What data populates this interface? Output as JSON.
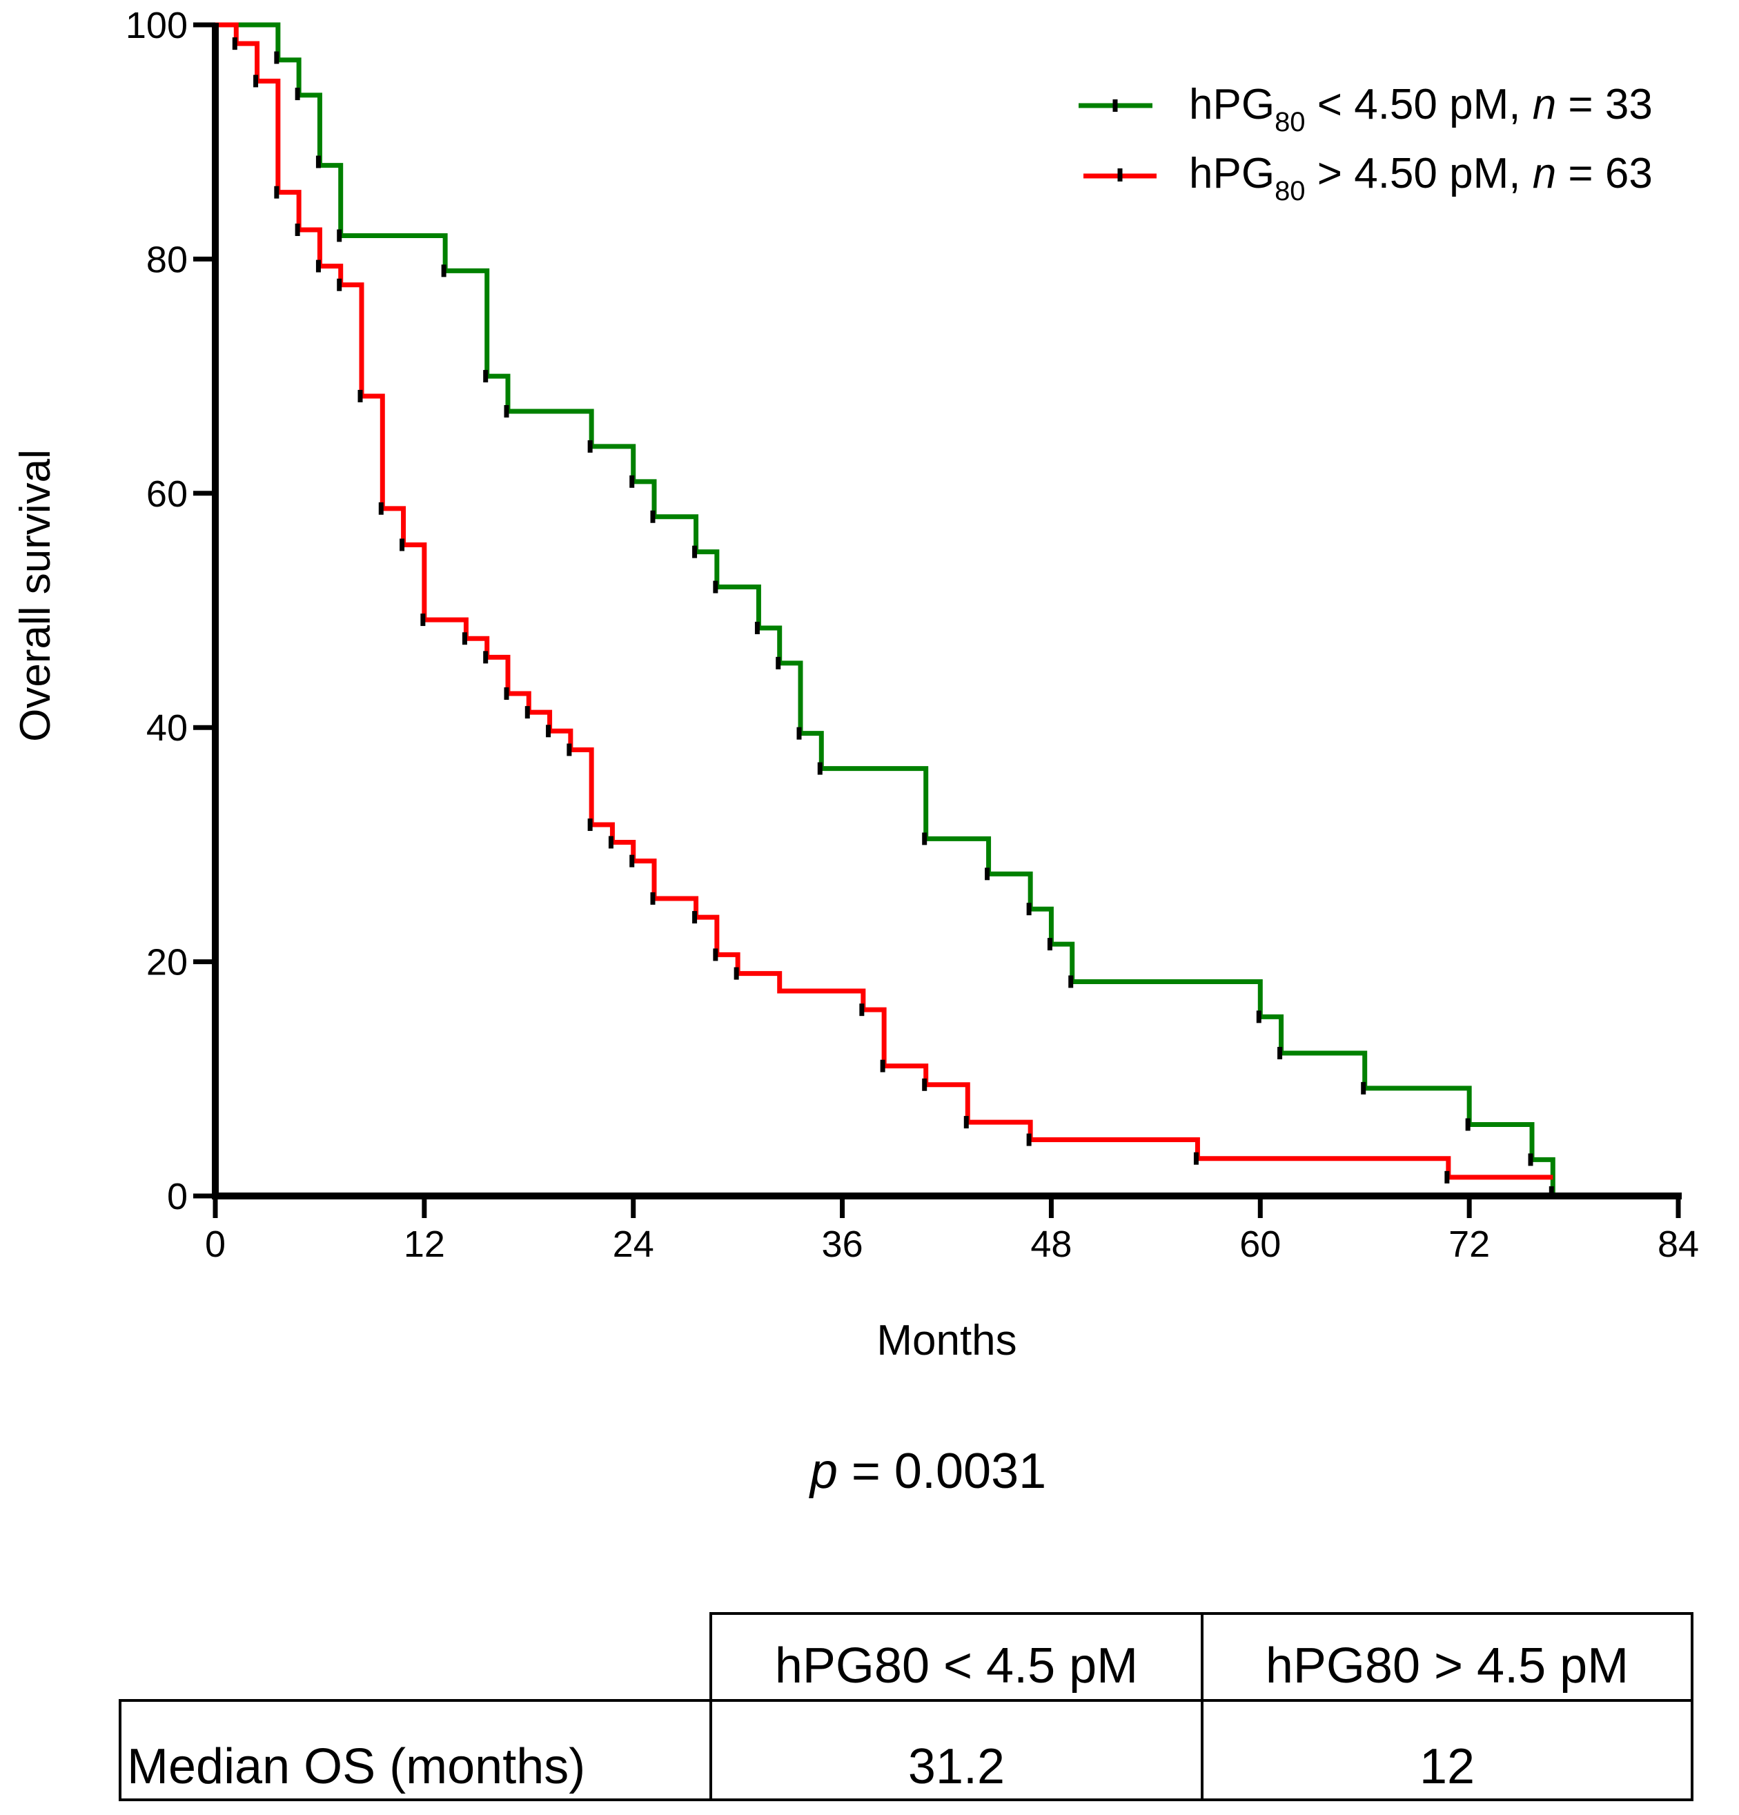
{
  "chart_data": {
    "type": "line",
    "subtype": "kaplan-meier step",
    "xlabel": "Months",
    "ylabel": "Overall survival",
    "xlim": [
      0,
      84
    ],
    "ylim": [
      0,
      100
    ],
    "xticks": [
      0,
      12,
      24,
      36,
      48,
      60,
      72,
      84
    ],
    "yticks": [
      0,
      20,
      40,
      60,
      80,
      100
    ],
    "grid": false,
    "legend_position": "top-right",
    "series": [
      {
        "name": "hPG80 < 4.50 pM, n = 33",
        "legend": {
          "prefix": "hPG",
          "subscript": "80",
          "condition": " < 4.50 pM, ",
          "n_label": "n",
          "n_text": " = 33"
        },
        "color": "#008000",
        "steps": [
          [
            0,
            100
          ],
          [
            3.6,
            97
          ],
          [
            4.8,
            94
          ],
          [
            6,
            88
          ],
          [
            7.2,
            82
          ],
          [
            13.2,
            79
          ],
          [
            15.6,
            70
          ],
          [
            16.8,
            67
          ],
          [
            21.6,
            64
          ],
          [
            24,
            61
          ],
          [
            25.2,
            58
          ],
          [
            27.6,
            55
          ],
          [
            28.8,
            52
          ],
          [
            31.2,
            48.5
          ],
          [
            32.4,
            45.5
          ],
          [
            33.6,
            39.5
          ],
          [
            34.8,
            36.5
          ],
          [
            40.8,
            30.5
          ],
          [
            44.4,
            27.5
          ],
          [
            46.8,
            24.5
          ],
          [
            48,
            21.5
          ],
          [
            49.2,
            18.3
          ],
          [
            60,
            15.3
          ],
          [
            61.2,
            12.2
          ],
          [
            66,
            9.2
          ],
          [
            72,
            6.1
          ],
          [
            75.6,
            3.1
          ],
          [
            76.8,
            0
          ]
        ],
        "censored": [
          [
            3.6,
            97.2
          ],
          [
            4.8,
            94.1
          ],
          [
            6,
            88.3
          ],
          [
            7.2,
            82
          ],
          [
            13.2,
            79
          ],
          [
            15.6,
            70
          ],
          [
            16.8,
            67
          ],
          [
            21.6,
            64
          ],
          [
            24,
            61
          ],
          [
            25.2,
            58
          ],
          [
            27.6,
            55
          ],
          [
            28.8,
            52
          ],
          [
            31.2,
            48.5
          ],
          [
            32.4,
            45.5
          ],
          [
            33.6,
            39.5
          ],
          [
            34.8,
            36.5
          ],
          [
            40.8,
            30.5
          ],
          [
            44.4,
            27.5
          ],
          [
            46.8,
            24.5
          ],
          [
            48,
            21.5
          ],
          [
            49.2,
            18.3
          ],
          [
            60,
            15.3
          ],
          [
            61.2,
            12.2
          ],
          [
            66,
            9.2
          ],
          [
            72,
            6.1
          ],
          [
            75.6,
            3.1
          ],
          [
            76.8,
            0.3
          ]
        ]
      },
      {
        "name": "hPG80 > 4.50 pM, n = 63",
        "legend": {
          "prefix": "hPG",
          "subscript": "80",
          "condition": " > 4.50 pM, ",
          "n_label": "n",
          "n_text": " = 63"
        },
        "color": "#ff0000",
        "steps": [
          [
            0,
            100
          ],
          [
            1.2,
            98.4
          ],
          [
            2.4,
            95.2
          ],
          [
            3.6,
            85.7
          ],
          [
            4.8,
            82.5
          ],
          [
            6,
            79.4
          ],
          [
            7.2,
            77.8
          ],
          [
            8.4,
            68.3
          ],
          [
            9.6,
            58.7
          ],
          [
            10.8,
            55.6
          ],
          [
            12,
            49.2
          ],
          [
            14.4,
            47.6
          ],
          [
            15.6,
            46
          ],
          [
            16.8,
            42.9
          ],
          [
            18,
            41.3
          ],
          [
            19.2,
            39.7
          ],
          [
            20.4,
            38.1
          ],
          [
            21.6,
            31.7
          ],
          [
            22.8,
            30.2
          ],
          [
            24,
            28.6
          ],
          [
            25.2,
            25.4
          ],
          [
            27.6,
            23.8
          ],
          [
            28.8,
            20.6
          ],
          [
            30,
            19
          ],
          [
            32.4,
            17.5
          ],
          [
            37.2,
            15.9
          ],
          [
            38.4,
            11.1
          ],
          [
            40.8,
            9.5
          ],
          [
            43.2,
            6.3
          ],
          [
            46.8,
            4.8
          ],
          [
            56.4,
            3.2
          ],
          [
            70.8,
            1.6
          ],
          [
            76.8,
            1.6
          ]
        ],
        "censored": [
          [
            1.2,
            98.4
          ],
          [
            2.4,
            95.2
          ],
          [
            3.6,
            85.7
          ],
          [
            4.8,
            82.5
          ],
          [
            6,
            79.4
          ],
          [
            7.2,
            77.8
          ],
          [
            8.4,
            68.3
          ],
          [
            9.6,
            58.7
          ],
          [
            10.8,
            55.6
          ],
          [
            12,
            49.2
          ],
          [
            14.4,
            47.6
          ],
          [
            15.6,
            46
          ],
          [
            16.8,
            42.9
          ],
          [
            18,
            41.3
          ],
          [
            19.2,
            39.7
          ],
          [
            20.4,
            38.1
          ],
          [
            21.6,
            31.7
          ],
          [
            22.8,
            30.2
          ],
          [
            24,
            28.6
          ],
          [
            25.2,
            25.4
          ],
          [
            27.6,
            23.8
          ],
          [
            28.8,
            20.6
          ],
          [
            30,
            19
          ],
          [
            37.2,
            15.9
          ],
          [
            38.4,
            11.1
          ],
          [
            40.8,
            9.5
          ],
          [
            43.2,
            6.3
          ],
          [
            46.8,
            4.8
          ],
          [
            56.4,
            3.2
          ],
          [
            70.8,
            1.6
          ]
        ]
      }
    ],
    "annotation": {
      "p_label": "p",
      "p_text": " = 0.0031"
    },
    "table": {
      "columns": [
        "hPG80 < 4.5 pM",
        "hPG80 > 4.5 pM"
      ],
      "rows": [
        {
          "label": "Median OS (months)",
          "values": [
            "31.2",
            "12"
          ]
        }
      ]
    }
  }
}
